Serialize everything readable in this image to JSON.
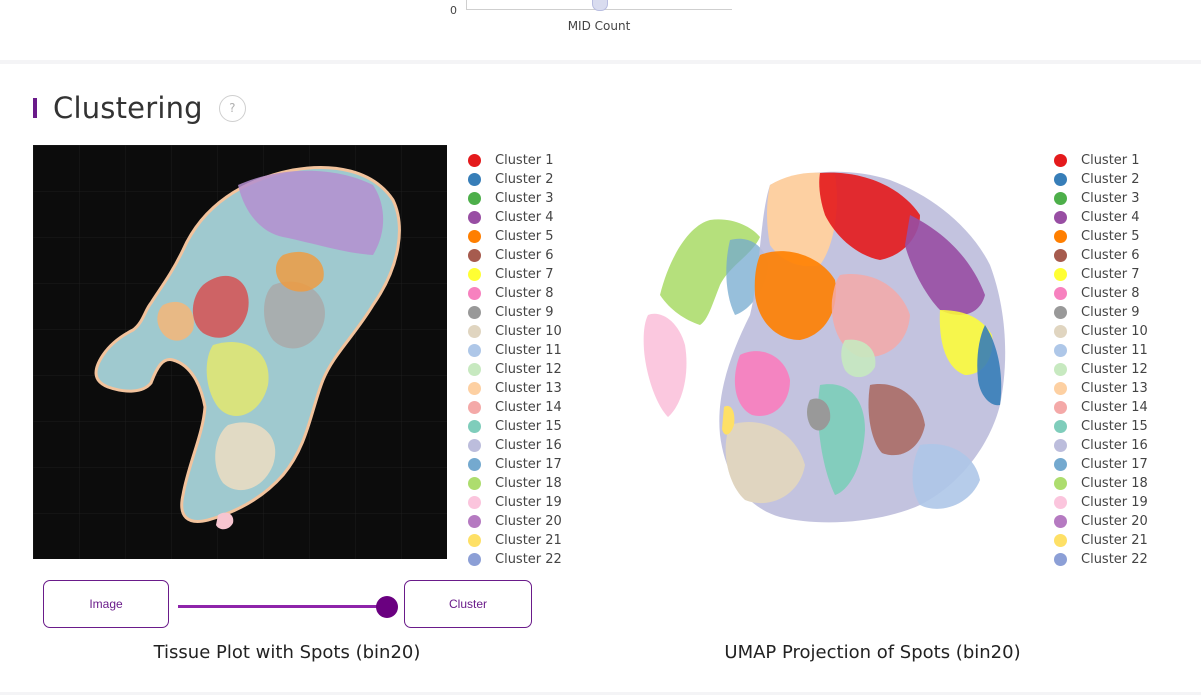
{
  "top_chart": {
    "y_tick_zero": "0",
    "xlabel": "MID Count"
  },
  "section": {
    "title": "Clustering",
    "help_symbol": "?"
  },
  "clusters": [
    {
      "label": "Cluster 1",
      "color": "#e41a1c"
    },
    {
      "label": "Cluster 2",
      "color": "#377eb8"
    },
    {
      "label": "Cluster 3",
      "color": "#4daf4a"
    },
    {
      "label": "Cluster 4",
      "color": "#984ea3"
    },
    {
      "label": "Cluster 5",
      "color": "#ff7f00"
    },
    {
      "label": "Cluster 6",
      "color": "#a65b4e"
    },
    {
      "label": "Cluster 7",
      "color": "#ffff33"
    },
    {
      "label": "Cluster 8",
      "color": "#f781bf"
    },
    {
      "label": "Cluster 9",
      "color": "#999999"
    },
    {
      "label": "Cluster 10",
      "color": "#e0d5c0"
    },
    {
      "label": "Cluster 11",
      "color": "#aec7e8"
    },
    {
      "label": "Cluster 12",
      "color": "#c7e9c0"
    },
    {
      "label": "Cluster 13",
      "color": "#fdd0a2"
    },
    {
      "label": "Cluster 14",
      "color": "#f4a9a8"
    },
    {
      "label": "Cluster 15",
      "color": "#7fcdbb"
    },
    {
      "label": "Cluster 16",
      "color": "#bcbddc"
    },
    {
      "label": "Cluster 17",
      "color": "#74a9cf"
    },
    {
      "label": "Cluster 18",
      "color": "#addd6e"
    },
    {
      "label": "Cluster 19",
      "color": "#fbc5dd"
    },
    {
      "label": "Cluster 20",
      "color": "#b57ac1"
    },
    {
      "label": "Cluster 21",
      "color": "#fee066"
    },
    {
      "label": "Cluster 22",
      "color": "#8c9fd6"
    }
  ],
  "controls": {
    "image_label": "Image",
    "cluster_label": "Cluster"
  },
  "captions": {
    "tissue": "Tissue Plot with Spots (bin20)",
    "umap": "UMAP Projection of Spots (bin20)"
  }
}
